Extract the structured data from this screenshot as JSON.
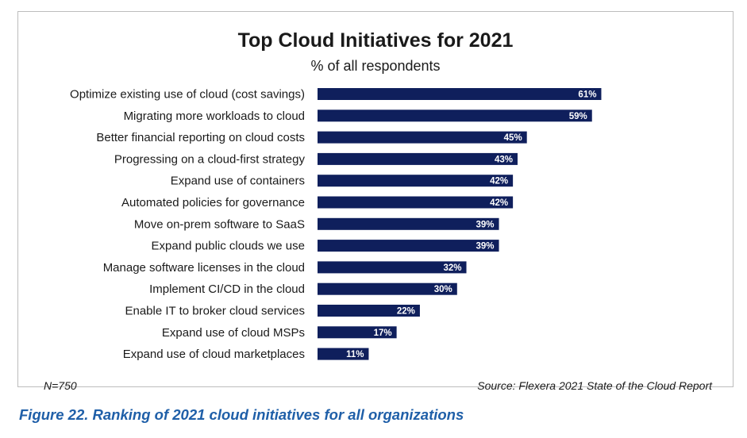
{
  "chart_data": {
    "type": "bar",
    "orientation": "horizontal",
    "title": "Top Cloud Initiatives for 2021",
    "subtitle": "% of all respondents",
    "categories": [
      "Optimize existing use of cloud (cost savings)",
      "Migrating more workloads to cloud",
      "Better financial reporting on cloud costs",
      "Progressing on a cloud-first strategy",
      "Expand use of containers",
      "Automated policies for governance",
      "Move on-prem software to SaaS",
      "Expand public clouds we use",
      "Manage software licenses in the cloud",
      "Implement CI/CD in the cloud",
      "Enable IT to broker cloud services",
      "Expand use of cloud MSPs",
      "Expand use of cloud marketplaces"
    ],
    "values": [
      61,
      59,
      45,
      43,
      42,
      42,
      39,
      39,
      32,
      30,
      22,
      17,
      11
    ],
    "value_labels": [
      "61%",
      "59%",
      "45%",
      "43%",
      "42%",
      "42%",
      "39%",
      "39%",
      "32%",
      "30%",
      "22%",
      "17%",
      "11%"
    ],
    "unit": "%",
    "xlim": [
      0,
      100
    ],
    "bar_color": "#0f1f5c",
    "xlabel": "",
    "ylabel": ""
  },
  "footer": {
    "sample_size": "N=750",
    "source": "Source: Flexera 2021 State of the Cloud Report"
  },
  "caption": "Figure 22. Ranking of 2021 cloud initiatives for all organizations"
}
